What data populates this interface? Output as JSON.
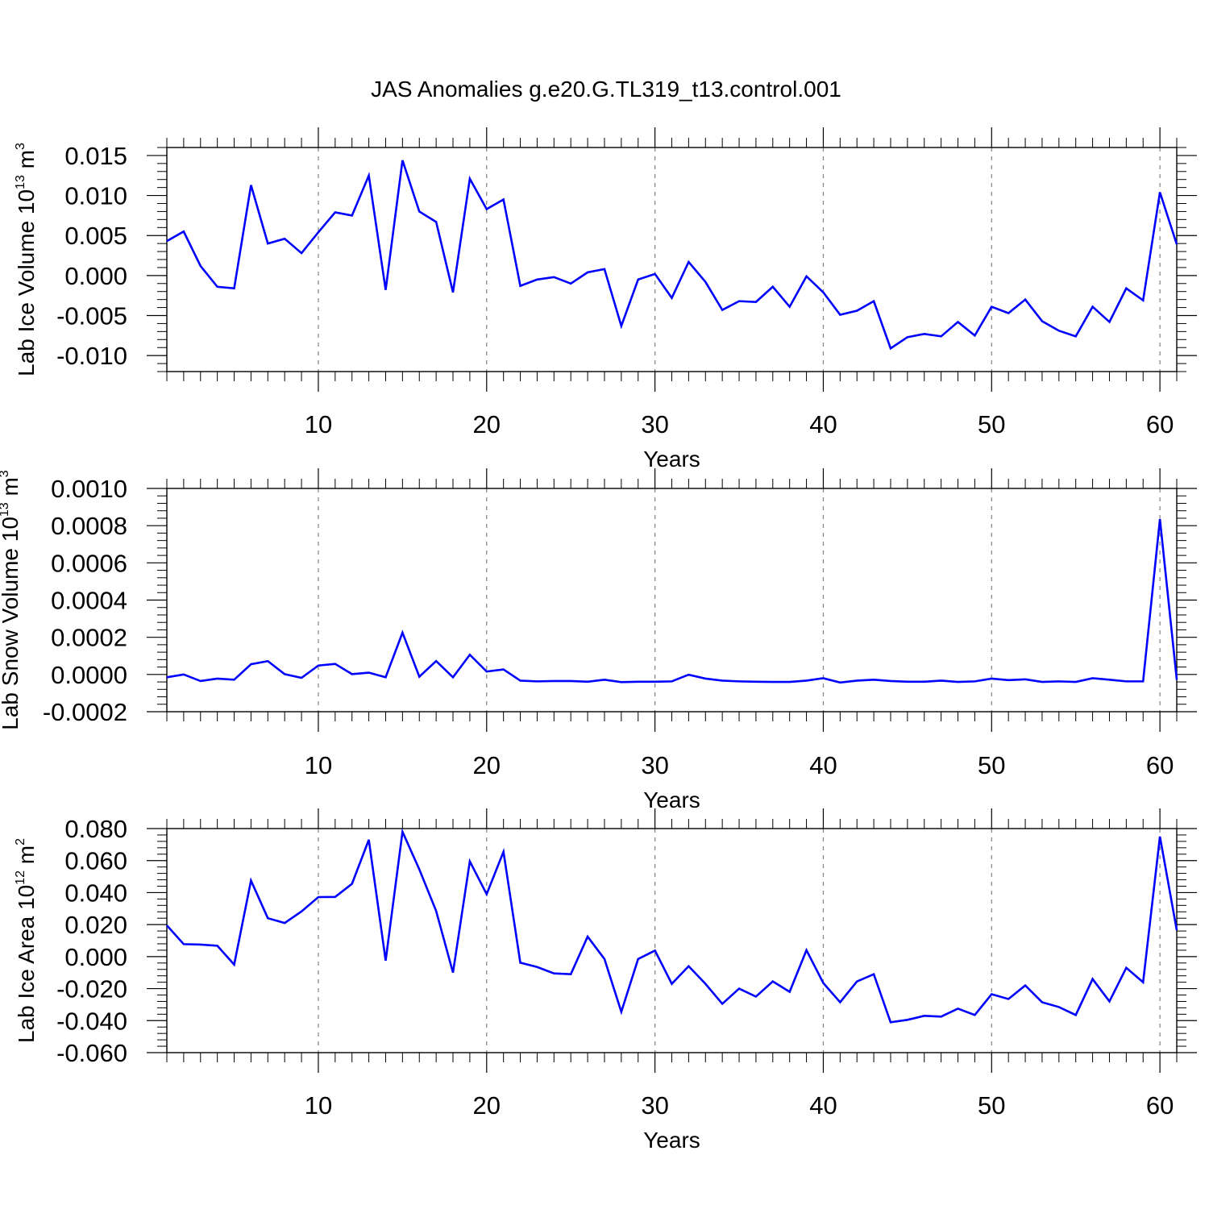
{
  "title": "JAS Anomalies g.e20.G.TL319_t13.control.001",
  "colors": {
    "series": "#0000ff",
    "axis": "#000000",
    "gridline": "#808080"
  },
  "chart_data": [
    {
      "type": "line",
      "ylabel": {
        "prefix": "Lab Ice Volume 10",
        "exp": "13",
        "unit": " m",
        "unit_exp": "3"
      },
      "xlabel": "Years",
      "xlim": [
        1,
        61
      ],
      "ylim": [
        -0.012,
        0.016
      ],
      "xticks": [
        10,
        20,
        30,
        40,
        50,
        60
      ],
      "yticks": [
        -0.01,
        -0.005,
        0.0,
        0.005,
        0.01,
        0.015
      ],
      "ytick_labels": [
        "-0.010",
        "-0.005",
        "0.000",
        "0.005",
        "0.010",
        "0.015"
      ],
      "grid": "vertical dashed at major x ticks",
      "series": [
        {
          "x": [
            1,
            2,
            3,
            4,
            5,
            6,
            7,
            8,
            9,
            10,
            11,
            12,
            13,
            14,
            15,
            16,
            17,
            18,
            19,
            20,
            21,
            22,
            23,
            24,
            25,
            26,
            27,
            28,
            29,
            30,
            31,
            32,
            33,
            34,
            35,
            36,
            37,
            38,
            39,
            40,
            41,
            42,
            43,
            44,
            45,
            46,
            47,
            48,
            49,
            50,
            51,
            52,
            53,
            54,
            55,
            56,
            57,
            58,
            59,
            60,
            61
          ],
          "values": [
            0.0043,
            0.0055,
            0.0012,
            -0.0014,
            -0.0016,
            0.0113,
            0.004,
            0.0046,
            0.0028,
            0.0054,
            0.0079,
            0.0075,
            0.0125,
            -0.0018,
            0.0144,
            0.008,
            0.0067,
            -0.0021,
            0.0121,
            0.0083,
            0.0095,
            -0.0013,
            -0.0005,
            -0.0002,
            -0.001,
            0.0004,
            0.0008,
            -0.0063,
            -0.0005,
            0.0002,
            -0.0028,
            0.0017,
            -0.0008,
            -0.0043,
            -0.0032,
            -0.0033,
            -0.0014,
            -0.0039,
            -0.0001,
            -0.0021,
            -0.0049,
            -0.0044,
            -0.0032,
            -0.0091,
            -0.0077,
            -0.0073,
            -0.0076,
            -0.0058,
            -0.0075,
            -0.0039,
            -0.0047,
            -0.003,
            -0.0057,
            -0.0069,
            -0.0076,
            -0.0039,
            -0.0058,
            -0.0016,
            -0.0031,
            0.0104,
            0.0039
          ]
        }
      ]
    },
    {
      "type": "line",
      "ylabel": {
        "prefix": "Lab Snow Volume 10",
        "exp": "13",
        "unit": " m",
        "unit_exp": "3"
      },
      "xlabel": "Years",
      "xlim": [
        1,
        61
      ],
      "ylim": [
        -0.0002,
        0.001
      ],
      "xticks": [
        10,
        20,
        30,
        40,
        50,
        60
      ],
      "yticks": [
        -0.0002,
        0.0,
        0.0002,
        0.0004,
        0.0006,
        0.0008,
        0.001
      ],
      "ytick_labels": [
        "-0.0002",
        "0.0000",
        "0.0002",
        "0.0004",
        "0.0006",
        "0.0008",
        "0.0010"
      ],
      "grid": "vertical dashed at major x ticks",
      "series": [
        {
          "x": [
            1,
            2,
            3,
            4,
            5,
            6,
            7,
            8,
            9,
            10,
            11,
            12,
            13,
            14,
            15,
            16,
            17,
            18,
            19,
            20,
            21,
            22,
            23,
            24,
            25,
            26,
            27,
            28,
            29,
            30,
            31,
            32,
            33,
            34,
            35,
            36,
            37,
            38,
            39,
            40,
            41,
            42,
            43,
            44,
            45,
            46,
            47,
            48,
            49,
            50,
            51,
            52,
            53,
            54,
            55,
            56,
            57,
            58,
            59,
            60,
            61
          ],
          "values": [
            -1.5e-05,
            0.0,
            -3.5e-05,
            -2.2e-05,
            -2.8e-05,
            5.5e-05,
            7.2e-05,
            2e-06,
            -1.8e-05,
            4.8e-05,
            5.7e-05,
            2e-06,
            1e-05,
            -1.5e-05,
            0.000225,
            -1.2e-05,
            7.2e-05,
            -1.5e-05,
            0.000106,
            1.6e-05,
            2.7e-05,
            -3.3e-05,
            -3.7e-05,
            -3.5e-05,
            -3.5e-05,
            -3.9e-05,
            -2.8e-05,
            -4.1e-05,
            -3.9e-05,
            -3.9e-05,
            -3.7e-05,
            -1e-06,
            -2.2e-05,
            -3.3e-05,
            -3.7e-05,
            -3.9e-05,
            -4e-05,
            -4e-05,
            -3.3e-05,
            -2e-05,
            -4.3e-05,
            -3.3e-05,
            -2.8e-05,
            -3.5e-05,
            -3.9e-05,
            -3.9e-05,
            -3.3e-05,
            -4e-05,
            -3.7e-05,
            -2.2e-05,
            -3e-05,
            -2.6e-05,
            -4e-05,
            -3.7e-05,
            -4e-05,
            -2e-05,
            -2.8e-05,
            -3.7e-05,
            -3.7e-05,
            0.000835,
            -2.8e-05
          ]
        }
      ]
    },
    {
      "type": "line",
      "ylabel": {
        "prefix": "Lab Ice Area 10",
        "exp": "12",
        "unit": " m",
        "unit_exp": "2"
      },
      "xlabel": "Years",
      "xlim": [
        1,
        61
      ],
      "ylim": [
        -0.06,
        0.08
      ],
      "xticks": [
        10,
        20,
        30,
        40,
        50,
        60
      ],
      "yticks": [
        -0.06,
        -0.04,
        -0.02,
        0.0,
        0.02,
        0.04,
        0.06,
        0.08
      ],
      "ytick_labels": [
        "-0.060",
        "-0.040",
        "-0.020",
        "0.000",
        "0.020",
        "0.040",
        "0.060",
        "0.080"
      ],
      "grid": "vertical dashed at major x ticks",
      "series": [
        {
          "x": [
            1,
            2,
            3,
            4,
            5,
            6,
            7,
            8,
            9,
            10,
            11,
            12,
            13,
            14,
            15,
            16,
            17,
            18,
            19,
            20,
            21,
            22,
            23,
            24,
            25,
            26,
            27,
            28,
            29,
            30,
            31,
            32,
            33,
            34,
            35,
            36,
            37,
            38,
            39,
            40,
            41,
            42,
            43,
            44,
            45,
            46,
            47,
            48,
            49,
            50,
            51,
            52,
            53,
            54,
            55,
            56,
            57,
            58,
            59,
            60,
            61
          ],
          "values": [
            0.0195,
            0.0078,
            0.0075,
            0.0068,
            -0.005,
            0.0475,
            0.024,
            0.021,
            0.0282,
            0.0372,
            0.0373,
            0.0455,
            0.073,
            -0.0025,
            0.078,
            0.0545,
            0.0285,
            -0.01,
            0.0595,
            0.039,
            0.0655,
            -0.0038,
            -0.0065,
            -0.0105,
            -0.011,
            0.0125,
            -0.0015,
            -0.0345,
            -0.0015,
            0.0038,
            -0.017,
            -0.006,
            -0.017,
            -0.0295,
            -0.02,
            -0.025,
            -0.0155,
            -0.022,
            0.004,
            -0.0165,
            -0.0285,
            -0.0155,
            -0.011,
            -0.041,
            -0.0395,
            -0.037,
            -0.0375,
            -0.0325,
            -0.0365,
            -0.0235,
            -0.0265,
            -0.018,
            -0.0285,
            -0.0315,
            -0.0365,
            -0.014,
            -0.028,
            -0.007,
            -0.016,
            0.075,
            0.0165
          ]
        }
      ]
    }
  ]
}
